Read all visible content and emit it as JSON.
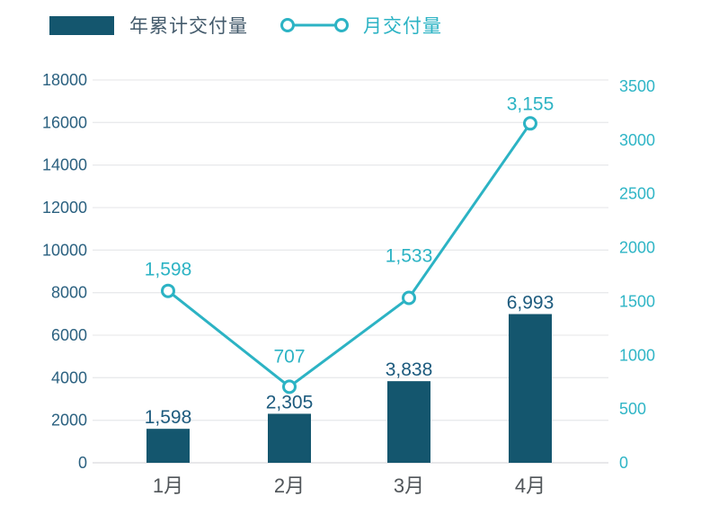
{
  "legend": {
    "bar_label": "年累计交付量",
    "line_label": "月交付量"
  },
  "colors": {
    "bar": "#14566e",
    "bar_value_label": "#1d5b7e",
    "line": "#2cb3c4",
    "line_value_label": "#2cb3c4",
    "left_axis_label": "#2b6180",
    "right_axis_label": "#2fb5c6",
    "x_axis_label": "#505559",
    "legend_bar_text": "#445b6c",
    "legend_line_text": "#2cb3c4",
    "gridline": "#e9eaec",
    "baseline": "#d9dbde",
    "marker_fill": "#ffffff"
  },
  "chart_data": {
    "type": "combo",
    "title": "",
    "categories": [
      "1月",
      "2月",
      "3月",
      "4月"
    ],
    "series": [
      {
        "name": "年累计交付量",
        "type": "bar",
        "axis": "left",
        "values": [
          1598,
          2305,
          3838,
          6993
        ],
        "labels": [
          "1,598",
          "2,305",
          "3,838",
          "6,993"
        ]
      },
      {
        "name": "月交付量",
        "type": "line",
        "axis": "right",
        "values": [
          1598,
          707,
          1533,
          3155
        ],
        "labels": [
          "1,598",
          "707",
          "1,533",
          "3,155"
        ]
      }
    ],
    "left_axis": {
      "min": 0,
      "max": 18000,
      "step": 2000,
      "ticks": [
        "0",
        "2000",
        "4000",
        "6000",
        "8000",
        "10000",
        "12000",
        "14000",
        "16000",
        "18000"
      ]
    },
    "right_axis": {
      "min": 0,
      "max": 3500,
      "step": 500,
      "ticks": [
        "0",
        "500",
        "1000",
        "1500",
        "2000",
        "2500",
        "3000",
        "3500"
      ]
    },
    "grid": true,
    "legend_position": "top-left"
  }
}
